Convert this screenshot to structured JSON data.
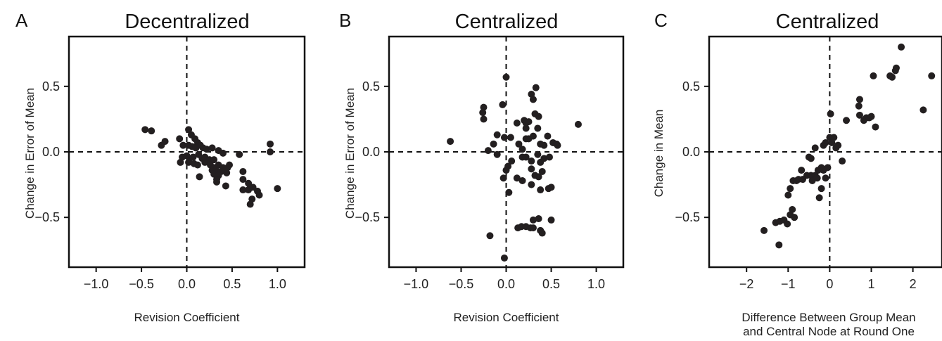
{
  "chart_data": [
    {
      "type": "scatter",
      "panel": "A",
      "title": "Decentralized",
      "xlabel": "Revision Coefficient",
      "ylabel": "Change in Error of  Mean",
      "xlim": [
        -1.3,
        1.3
      ],
      "ylim": [
        -0.88,
        0.88
      ],
      "xticks": [
        -1.0,
        -0.5,
        0.0,
        0.5,
        1.0
      ],
      "xtick_labels": [
        "−1.0",
        "−0.5",
        "0.0",
        "0.5",
        "1.0"
      ],
      "yticks": [
        0.5,
        0.0,
        -0.5
      ],
      "ytick_labels": [
        "0.5",
        "0.0",
        "−0.5"
      ],
      "grid": false,
      "reference_lines": {
        "x": 0,
        "y": 0,
        "style": "dashed"
      },
      "points": [
        [
          -0.46,
          0.17
        ],
        [
          -0.39,
          0.16
        ],
        [
          -0.28,
          0.05
        ],
        [
          -0.24,
          0.08
        ],
        [
          -0.08,
          0.1
        ],
        [
          -0.04,
          0.05
        ],
        [
          0.02,
          0.17
        ],
        [
          0.05,
          0.13
        ],
        [
          0.09,
          0.1
        ],
        [
          0.12,
          0.07
        ],
        [
          0.02,
          0.05
        ],
        [
          0.06,
          0.04
        ],
        [
          0.1,
          0.03
        ],
        [
          0.15,
          0.05
        ],
        [
          0.18,
          0.03
        ],
        [
          0.22,
          0.02
        ],
        [
          0.28,
          0.03
        ],
        [
          0.35,
          0.01
        ],
        [
          0.4,
          -0.01
        ],
        [
          -0.05,
          -0.04
        ],
        [
          0.0,
          -0.03
        ],
        [
          0.03,
          -0.05
        ],
        [
          0.07,
          -0.04
        ],
        [
          0.13,
          -0.02
        ],
        [
          0.17,
          -0.05
        ],
        [
          0.2,
          -0.04
        ],
        [
          0.25,
          -0.06
        ],
        [
          0.3,
          -0.06
        ],
        [
          -0.07,
          -0.08
        ],
        [
          0.02,
          -0.08
        ],
        [
          0.08,
          -0.09
        ],
        [
          0.12,
          -0.1
        ],
        [
          0.2,
          -0.08
        ],
        [
          0.26,
          -0.1
        ],
        [
          0.3,
          -0.12
        ],
        [
          0.35,
          -0.1
        ],
        [
          0.4,
          -0.12
        ],
        [
          0.45,
          -0.12
        ],
        [
          0.47,
          -0.1
        ],
        [
          0.28,
          -0.14
        ],
        [
          0.32,
          -0.14
        ],
        [
          0.38,
          -0.15
        ],
        [
          0.44,
          -0.16
        ],
        [
          0.3,
          -0.17
        ],
        [
          0.35,
          -0.18
        ],
        [
          0.33,
          -0.21
        ],
        [
          0.33,
          -0.23
        ],
        [
          0.14,
          -0.19
        ],
        [
          0.43,
          -0.26
        ],
        [
          0.58,
          -0.02
        ],
        [
          0.62,
          -0.15
        ],
        [
          0.62,
          -0.21
        ],
        [
          0.68,
          -0.24
        ],
        [
          0.68,
          -0.29
        ],
        [
          0.62,
          -0.29
        ],
        [
          0.73,
          -0.27
        ],
        [
          0.78,
          -0.3
        ],
        [
          0.72,
          -0.36
        ],
        [
          0.7,
          -0.4
        ],
        [
          0.8,
          -0.33
        ],
        [
          0.92,
          0.06
        ],
        [
          0.92,
          0.0
        ],
        [
          1.0,
          -0.28
        ]
      ]
    },
    {
      "type": "scatter",
      "panel": "B",
      "title": "Centralized",
      "xlabel": "Revision Coefficient",
      "ylabel": "Change in Error of  Mean",
      "xlim": [
        -1.3,
        1.3
      ],
      "ylim": [
        -0.88,
        0.88
      ],
      "xticks": [
        -1.0,
        -0.5,
        0.0,
        0.5,
        1.0
      ],
      "xtick_labels": [
        "−1.0",
        "−0.5",
        "0.0",
        "0.5",
        "1.0"
      ],
      "yticks": [
        0.5,
        0.0,
        -0.5
      ],
      "ytick_labels": [
        "0.5",
        "0.0",
        "−0.5"
      ],
      "grid": false,
      "reference_lines": {
        "x": 0,
        "y": 0,
        "style": "dashed"
      },
      "points": [
        [
          -0.62,
          0.08
        ],
        [
          -0.25,
          0.34
        ],
        [
          -0.26,
          0.3
        ],
        [
          -0.25,
          0.25
        ],
        [
          -0.2,
          0.01
        ],
        [
          -0.14,
          0.06
        ],
        [
          -0.1,
          0.13
        ],
        [
          -0.1,
          -0.02
        ],
        [
          -0.04,
          0.36
        ],
        [
          0.0,
          0.57
        ],
        [
          -0.02,
          0.11
        ],
        [
          0.05,
          0.11
        ],
        [
          0.02,
          -0.11
        ],
        [
          0.0,
          -0.14
        ],
        [
          0.06,
          -0.07
        ],
        [
          -0.03,
          -0.2
        ],
        [
          0.03,
          -0.31
        ],
        [
          0.12,
          0.22
        ],
        [
          0.14,
          0.06
        ],
        [
          0.18,
          0.02
        ],
        [
          0.2,
          0.24
        ],
        [
          0.22,
          0.18
        ],
        [
          0.22,
          0.22
        ],
        [
          0.25,
          0.23
        ],
        [
          0.28,
          0.44
        ],
        [
          0.3,
          0.4
        ],
        [
          0.33,
          0.49
        ],
        [
          0.32,
          0.29
        ],
        [
          0.36,
          0.27
        ],
        [
          0.35,
          0.18
        ],
        [
          0.22,
          0.1
        ],
        [
          0.25,
          0.1
        ],
        [
          0.3,
          0.12
        ],
        [
          0.38,
          0.06
        ],
        [
          0.42,
          0.05
        ],
        [
          0.46,
          0.12
        ],
        [
          0.52,
          0.07
        ],
        [
          0.18,
          -0.04
        ],
        [
          0.22,
          -0.04
        ],
        [
          0.28,
          -0.07
        ],
        [
          0.35,
          -0.02
        ],
        [
          0.38,
          -0.08
        ],
        [
          0.42,
          -0.05
        ],
        [
          0.48,
          -0.04
        ],
        [
          0.12,
          -0.2
        ],
        [
          0.18,
          -0.22
        ],
        [
          0.28,
          -0.13
        ],
        [
          0.32,
          -0.18
        ],
        [
          0.36,
          -0.19
        ],
        [
          0.4,
          -0.15
        ],
        [
          0.28,
          -0.25
        ],
        [
          0.38,
          -0.29
        ],
        [
          0.47,
          -0.28
        ],
        [
          0.5,
          -0.27
        ],
        [
          0.56,
          0.06
        ],
        [
          0.57,
          0.05
        ],
        [
          0.8,
          0.21
        ],
        [
          -0.18,
          -0.64
        ],
        [
          -0.02,
          -0.81
        ],
        [
          0.13,
          -0.58
        ],
        [
          0.17,
          -0.57
        ],
        [
          0.22,
          -0.57
        ],
        [
          0.27,
          -0.58
        ],
        [
          0.3,
          -0.52
        ],
        [
          0.3,
          -0.58
        ],
        [
          0.36,
          -0.51
        ],
        [
          0.38,
          -0.6
        ],
        [
          0.4,
          -0.62
        ],
        [
          0.5,
          -0.52
        ]
      ]
    },
    {
      "type": "scatter",
      "panel": "C",
      "title": "Centralized",
      "xlabel": "Difference Between Group Mean\nand Central Node at Round One",
      "xlabel_lines": [
        "Difference Between Group Mean",
        "and Central Node at Round One"
      ],
      "ylabel": "Change in Mean",
      "xlim": [
        -2.9,
        2.7
      ],
      "ylim": [
        -0.88,
        0.88
      ],
      "xticks": [
        -2,
        -1,
        0,
        1,
        2
      ],
      "xtick_labels": [
        "−2",
        "−1",
        "0",
        "1",
        "2"
      ],
      "yticks": [
        0.5,
        0.0,
        -0.5
      ],
      "ytick_labels": [
        "0.5",
        "0.0",
        "−0.5"
      ],
      "grid": false,
      "reference_lines": {
        "x": 0,
        "y": 0,
        "style": "dashed"
      },
      "points": [
        [
          -1.58,
          -0.6
        ],
        [
          -1.3,
          -0.54
        ],
        [
          -1.2,
          -0.53
        ],
        [
          -1.1,
          -0.52
        ],
        [
          -1.02,
          -0.55
        ],
        [
          -1.22,
          -0.71
        ],
        [
          -0.95,
          -0.48
        ],
        [
          -0.9,
          -0.44
        ],
        [
          -0.85,
          -0.5
        ],
        [
          -1.0,
          -0.33
        ],
        [
          -0.95,
          -0.28
        ],
        [
          -0.88,
          -0.22
        ],
        [
          -0.8,
          -0.22
        ],
        [
          -0.75,
          -0.21
        ],
        [
          -0.65,
          -0.21
        ],
        [
          -0.68,
          -0.14
        ],
        [
          -0.55,
          -0.18
        ],
        [
          -0.45,
          -0.18
        ],
        [
          -0.42,
          -0.22
        ],
        [
          -0.35,
          -0.18
        ],
        [
          -0.3,
          -0.2
        ],
        [
          -0.28,
          -0.14
        ],
        [
          -0.2,
          -0.12
        ],
        [
          -0.15,
          -0.14
        ],
        [
          -0.05,
          -0.12
        ],
        [
          -0.1,
          -0.2
        ],
        [
          -0.2,
          -0.28
        ],
        [
          -0.25,
          -0.35
        ],
        [
          -0.15,
          0.05
        ],
        [
          -0.1,
          0.07
        ],
        [
          -0.35,
          0.03
        ],
        [
          -0.45,
          -0.05
        ],
        [
          -0.5,
          -0.04
        ],
        [
          0.0,
          0.11
        ],
        [
          0.05,
          0.07
        ],
        [
          0.1,
          0.11
        ],
        [
          0.15,
          0.03
        ],
        [
          0.2,
          0.05
        ],
        [
          0.3,
          -0.07
        ],
        [
          0.02,
          0.29
        ],
        [
          0.4,
          0.24
        ],
        [
          0.7,
          0.35
        ],
        [
          0.72,
          0.4
        ],
        [
          0.72,
          0.28
        ],
        [
          0.82,
          0.24
        ],
        [
          0.88,
          0.26
        ],
        [
          0.95,
          0.26
        ],
        [
          1.0,
          0.27
        ],
        [
          1.1,
          0.19
        ],
        [
          1.05,
          0.58
        ],
        [
          1.45,
          0.58
        ],
        [
          1.5,
          0.57
        ],
        [
          1.58,
          0.62
        ],
        [
          1.6,
          0.64
        ],
        [
          1.72,
          0.8
        ],
        [
          2.25,
          0.32
        ],
        [
          2.45,
          0.58
        ]
      ]
    }
  ]
}
